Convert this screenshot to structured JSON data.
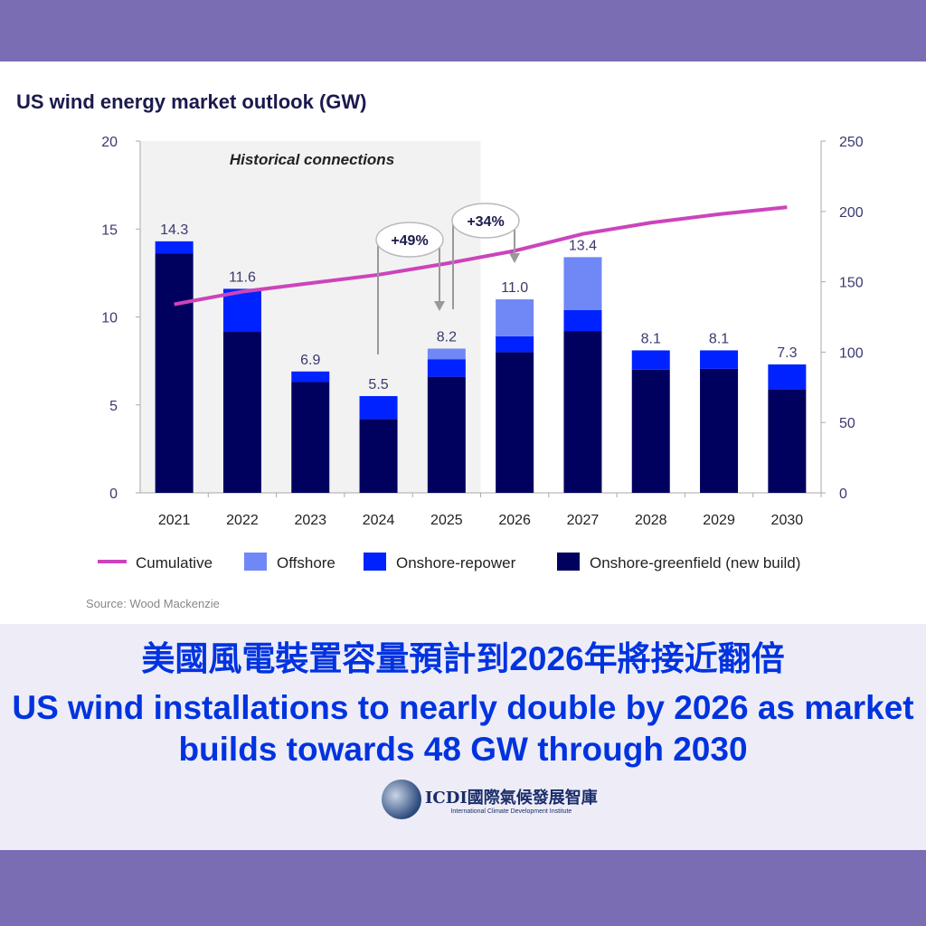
{
  "chart_data": {
    "type": "bar",
    "title": "US wind energy market outlook (GW)",
    "categories": [
      "2021",
      "2022",
      "2023",
      "2024",
      "2025",
      "2026",
      "2027",
      "2028",
      "2029",
      "2030"
    ],
    "series": [
      {
        "name": "Onshore-greenfield (new build)",
        "color": "#00005e",
        "values": [
          13.6,
          9.15,
          6.3,
          4.2,
          6.6,
          8.0,
          9.2,
          7.0,
          7.05,
          5.9
        ]
      },
      {
        "name": "Onshore-repower",
        "color": "#0022ff",
        "values": [
          0.7,
          2.45,
          0.6,
          1.3,
          1.0,
          0.9,
          1.2,
          1.1,
          1.05,
          1.4
        ]
      },
      {
        "name": "Offshore",
        "color": "#7088f5",
        "values": [
          0,
          0,
          0,
          0,
          0.6,
          2.1,
          3.0,
          0,
          0,
          0
        ]
      }
    ],
    "totals_labels": [
      "14.3",
      "11.6",
      "6.9",
      "5.5",
      "8.2",
      "11.0",
      "13.4",
      "8.1",
      "8.1",
      "7.3"
    ],
    "line_series": {
      "name": "Cumulative",
      "color": "#cc44bb",
      "axis": "right",
      "values": [
        134,
        143,
        149,
        155,
        163,
        172,
        184,
        192,
        198,
        203
      ]
    },
    "ylim": [
      0,
      20
    ],
    "y_ticks": [
      "0",
      "5",
      "10",
      "15",
      "20"
    ],
    "y2lim": [
      0,
      250
    ],
    "y2_ticks": [
      "0",
      "50",
      "100",
      "150",
      "200",
      "250"
    ],
    "shaded_region_label": "Historical connections",
    "annotations": [
      "+49%",
      "+34%"
    ],
    "legend": [
      "Cumulative",
      "Offshore",
      "Onshore-repower",
      "Onshore-greenfield (new build)"
    ],
    "legend_position": "bottom",
    "source": "Source: Wood Mackenzie"
  },
  "caption": {
    "zh": "美國風電裝置容量預計到2026年將接近翻倍",
    "en": "US wind installations to nearly double by 2026 as market builds towards 48 GW through 2030"
  },
  "logo": {
    "name": "ICDI國際氣候發展智庫",
    "sub": "International Climate Development Institute"
  }
}
